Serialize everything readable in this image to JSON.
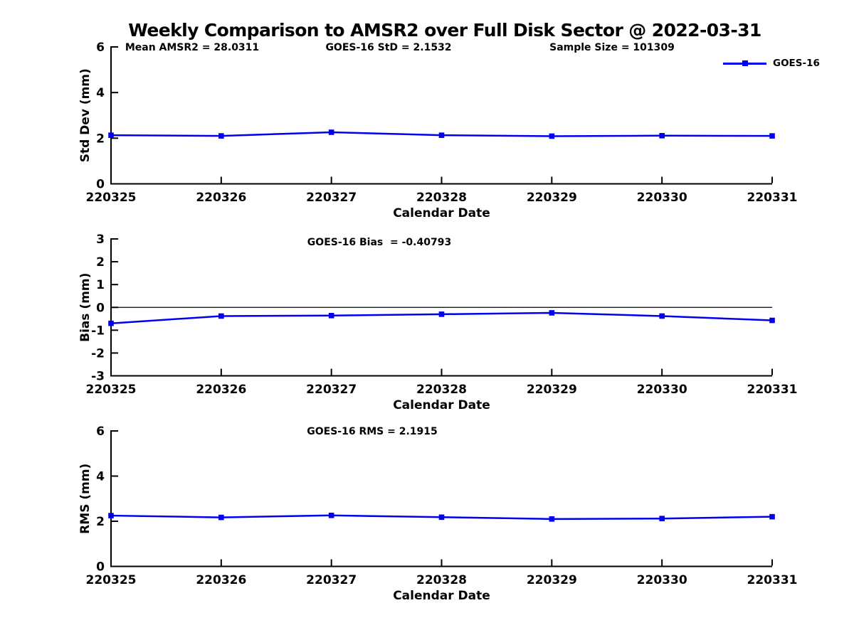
{
  "title": "Weekly Comparison to AMSR2 over Full Disk Sector @ 2022-03-31",
  "header_stats": {
    "mean_amsr2": "Mean AMSR2 = 28.0311",
    "goes16_std": "GOES-16 StD = 2.1532",
    "sample_size": "Sample Size = 101309"
  },
  "legend": {
    "label": "GOES-16",
    "color": "#0000ee",
    "position": "top-right"
  },
  "chart_data": [
    {
      "type": "line",
      "panel": "std-dev",
      "categories": [
        "220325",
        "220326",
        "220327",
        "220328",
        "220329",
        "220330",
        "220331"
      ],
      "series": [
        {
          "name": "GOES-16",
          "values": [
            2.13,
            2.1,
            2.26,
            2.13,
            2.09,
            2.11,
            2.1
          ]
        }
      ],
      "xlabel": "Calendar Date",
      "ylabel": "Std Dev (mm)",
      "ylim": [
        0,
        6
      ],
      "yticks": [
        0,
        2,
        4,
        6
      ],
      "grid": false,
      "annotation": "",
      "marker": "square"
    },
    {
      "type": "line",
      "panel": "bias",
      "categories": [
        "220325",
        "220326",
        "220327",
        "220328",
        "220329",
        "220330",
        "220331"
      ],
      "series": [
        {
          "name": "GOES-16",
          "values": [
            -0.7,
            -0.38,
            -0.36,
            -0.3,
            -0.24,
            -0.38,
            -0.57
          ]
        }
      ],
      "xlabel": "Calendar Date",
      "ylabel": "Bias (mm)",
      "ylim": [
        -3,
        3
      ],
      "yticks": [
        -3,
        -2,
        -1,
        0,
        1,
        2,
        3
      ],
      "grid": false,
      "zero_line": true,
      "annotation": "GOES-16 Bias  = -0.40793",
      "marker": "square"
    },
    {
      "type": "line",
      "panel": "rms",
      "categories": [
        "220325",
        "220326",
        "220327",
        "220328",
        "220329",
        "220330",
        "220331"
      ],
      "series": [
        {
          "name": "GOES-16",
          "values": [
            2.25,
            2.17,
            2.26,
            2.18,
            2.1,
            2.12,
            2.2
          ]
        }
      ],
      "xlabel": "Calendar Date",
      "ylabel": "RMS (mm)",
      "ylim": [
        0,
        6
      ],
      "yticks": [
        0,
        2,
        4,
        6
      ],
      "grid": false,
      "annotation": "GOES-16 RMS = 2.1915",
      "marker": "square"
    }
  ]
}
